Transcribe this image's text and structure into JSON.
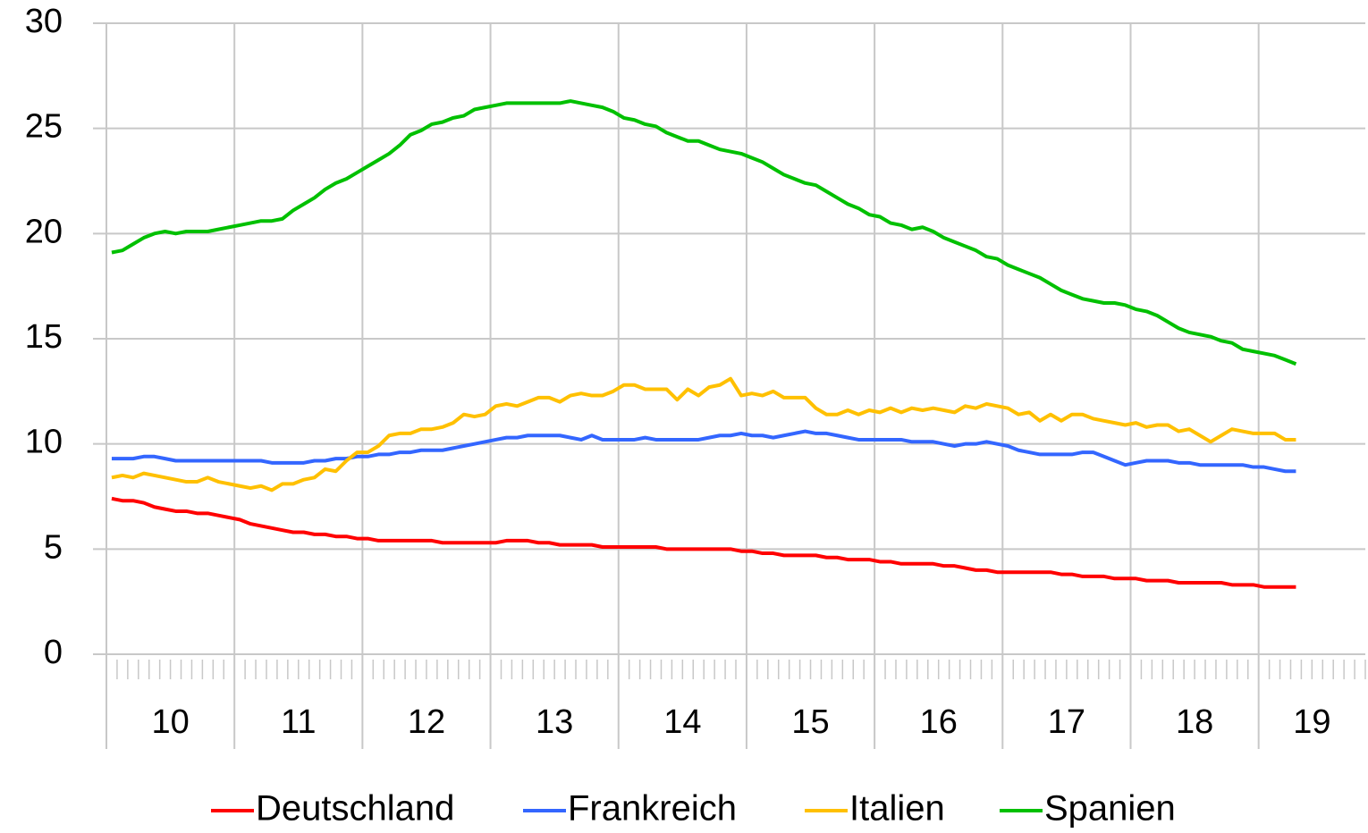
{
  "chart_data": {
    "type": "line",
    "categories": [
      null,
      null,
      null,
      null,
      null,
      null,
      null,
      null,
      null,
      null,
      null,
      null,
      null,
      null,
      null,
      null,
      null,
      null,
      null,
      null,
      null,
      null,
      null,
      null,
      null,
      null,
      null,
      null,
      null,
      null,
      null,
      null,
      null,
      null,
      null,
      null,
      null,
      null,
      null,
      null,
      null,
      null,
      null,
      null,
      null,
      null,
      null,
      null,
      null,
      null,
      null,
      null,
      null,
      null,
      null,
      null,
      null,
      null,
      null,
      null,
      null,
      null,
      null,
      null,
      null,
      null,
      null,
      null,
      null,
      null,
      null,
      null,
      null,
      null,
      null,
      null,
      null,
      null,
      null,
      null,
      null,
      null,
      null,
      null,
      null,
      null,
      null,
      null,
      null,
      null,
      null,
      null,
      null,
      null,
      null,
      null,
      null,
      null,
      null,
      null,
      null,
      null,
      null,
      null,
      null,
      null,
      null,
      null,
      null,
      null,
      null,
      null,
      null,
      null,
      null,
      null,
      null,
      null
    ],
    "x_groups": [
      {
        "label": "10",
        "size": 12
      },
      {
        "label": "11",
        "size": 12
      },
      {
        "label": "12",
        "size": 12
      },
      {
        "label": "13",
        "size": 12
      },
      {
        "label": "14",
        "size": 12
      },
      {
        "label": "15",
        "size": 12
      },
      {
        "label": "16",
        "size": 12
      },
      {
        "label": "17",
        "size": 12
      },
      {
        "label": "18",
        "size": 12
      },
      {
        "label": "19",
        "size": 10
      }
    ],
    "series": [
      {
        "name": "Deutschland",
        "color": "#ff0000",
        "values": [
          7.4,
          7.3,
          7.3,
          7.2,
          7.0,
          6.9,
          6.8,
          6.8,
          6.7,
          6.7,
          6.6,
          6.5,
          6.4,
          6.2,
          6.1,
          6.0,
          5.9,
          5.8,
          5.8,
          5.7,
          5.7,
          5.6,
          5.6,
          5.5,
          5.5,
          5.4,
          5.4,
          5.4,
          5.4,
          5.4,
          5.4,
          5.3,
          5.3,
          5.3,
          5.3,
          5.3,
          5.3,
          5.4,
          5.4,
          5.4,
          5.3,
          5.3,
          5.2,
          5.2,
          5.2,
          5.2,
          5.1,
          5.1,
          5.1,
          5.1,
          5.1,
          5.1,
          5.0,
          5.0,
          5.0,
          5.0,
          5.0,
          5.0,
          5.0,
          4.9,
          4.9,
          4.8,
          4.8,
          4.7,
          4.7,
          4.7,
          4.7,
          4.6,
          4.6,
          4.5,
          4.5,
          4.5,
          4.4,
          4.4,
          4.3,
          4.3,
          4.3,
          4.3,
          4.2,
          4.2,
          4.1,
          4.0,
          4.0,
          3.9,
          3.9,
          3.9,
          3.9,
          3.9,
          3.9,
          3.8,
          3.8,
          3.7,
          3.7,
          3.7,
          3.6,
          3.6,
          3.6,
          3.5,
          3.5,
          3.5,
          3.4,
          3.4,
          3.4,
          3.4,
          3.4,
          3.3,
          3.3,
          3.3,
          3.2,
          3.2,
          3.2,
          3.2,
          null,
          null,
          null,
          null,
          null,
          null
        ]
      },
      {
        "name": "Frankreich",
        "color": "#3366ff",
        "values": [
          9.3,
          9.3,
          9.3,
          9.4,
          9.4,
          9.3,
          9.2,
          9.2,
          9.2,
          9.2,
          9.2,
          9.2,
          9.2,
          9.2,
          9.2,
          9.1,
          9.1,
          9.1,
          9.1,
          9.2,
          9.2,
          9.3,
          9.3,
          9.4,
          9.4,
          9.5,
          9.5,
          9.6,
          9.6,
          9.7,
          9.7,
          9.7,
          9.8,
          9.9,
          10.0,
          10.1,
          10.2,
          10.3,
          10.3,
          10.4,
          10.4,
          10.4,
          10.4,
          10.3,
          10.2,
          10.4,
          10.2,
          10.2,
          10.2,
          10.2,
          10.3,
          10.2,
          10.2,
          10.2,
          10.2,
          10.2,
          10.3,
          10.4,
          10.4,
          10.5,
          10.4,
          10.4,
          10.3,
          10.4,
          10.5,
          10.6,
          10.5,
          10.5,
          10.4,
          10.3,
          10.2,
          10.2,
          10.2,
          10.2,
          10.2,
          10.1,
          10.1,
          10.1,
          10.0,
          9.9,
          10.0,
          10.0,
          10.1,
          10.0,
          9.9,
          9.7,
          9.6,
          9.5,
          9.5,
          9.5,
          9.5,
          9.6,
          9.6,
          9.4,
          9.2,
          9.0,
          9.1,
          9.2,
          9.2,
          9.2,
          9.1,
          9.1,
          9.0,
          9.0,
          9.0,
          9.0,
          9.0,
          8.9,
          8.9,
          8.8,
          8.7,
          8.7,
          null,
          null,
          null,
          null,
          null,
          null
        ]
      },
      {
        "name": "Italien",
        "color": "#ffc000",
        "values": [
          8.4,
          8.5,
          8.4,
          8.6,
          8.5,
          8.4,
          8.3,
          8.2,
          8.2,
          8.4,
          8.2,
          8.1,
          8.0,
          7.9,
          8.0,
          7.8,
          8.1,
          8.1,
          8.3,
          8.4,
          8.8,
          8.7,
          9.2,
          9.6,
          9.6,
          9.9,
          10.4,
          10.5,
          10.5,
          10.7,
          10.7,
          10.8,
          11.0,
          11.4,
          11.3,
          11.4,
          11.8,
          11.9,
          11.8,
          12.0,
          12.2,
          12.2,
          12.0,
          12.3,
          12.4,
          12.3,
          12.3,
          12.5,
          12.8,
          12.8,
          12.6,
          12.6,
          12.6,
          12.1,
          12.6,
          12.3,
          12.7,
          12.8,
          13.1,
          12.3,
          12.4,
          12.3,
          12.5,
          12.2,
          12.2,
          12.2,
          11.7,
          11.4,
          11.4,
          11.6,
          11.4,
          11.6,
          11.5,
          11.7,
          11.5,
          11.7,
          11.6,
          11.7,
          11.6,
          11.5,
          11.8,
          11.7,
          11.9,
          11.8,
          11.7,
          11.4,
          11.5,
          11.1,
          11.4,
          11.1,
          11.4,
          11.4,
          11.2,
          11.1,
          11.0,
          10.9,
          11.0,
          10.8,
          10.9,
          10.9,
          10.6,
          10.7,
          10.4,
          10.1,
          10.4,
          10.7,
          10.6,
          10.5,
          10.5,
          10.5,
          10.2,
          10.2,
          null,
          null,
          null,
          null,
          null,
          null
        ]
      },
      {
        "name": "Spanien",
        "color": "#00c000",
        "values": [
          19.1,
          19.2,
          19.5,
          19.8,
          20.0,
          20.1,
          20.0,
          20.1,
          20.1,
          20.1,
          20.2,
          20.3,
          20.4,
          20.5,
          20.6,
          20.6,
          20.7,
          21.1,
          21.4,
          21.7,
          22.1,
          22.4,
          22.6,
          22.9,
          23.2,
          23.5,
          23.8,
          24.2,
          24.7,
          24.9,
          25.2,
          25.3,
          25.5,
          25.6,
          25.9,
          26.0,
          26.1,
          26.2,
          26.2,
          26.2,
          26.2,
          26.2,
          26.2,
          26.3,
          26.2,
          26.1,
          26.0,
          25.8,
          25.5,
          25.4,
          25.2,
          25.1,
          24.8,
          24.6,
          24.4,
          24.4,
          24.2,
          24.0,
          23.9,
          23.8,
          23.6,
          23.4,
          23.1,
          22.8,
          22.6,
          22.4,
          22.3,
          22.0,
          21.7,
          21.4,
          21.2,
          20.9,
          20.8,
          20.5,
          20.4,
          20.2,
          20.3,
          20.1,
          19.8,
          19.6,
          19.4,
          19.2,
          18.9,
          18.8,
          18.5,
          18.3,
          18.1,
          17.9,
          17.6,
          17.3,
          17.1,
          16.9,
          16.8,
          16.7,
          16.7,
          16.6,
          16.4,
          16.3,
          16.1,
          15.8,
          15.5,
          15.3,
          15.2,
          15.1,
          14.9,
          14.8,
          14.5,
          14.4,
          14.3,
          14.2,
          14.0,
          13.8,
          null,
          null,
          null,
          null,
          null,
          null
        ]
      }
    ],
    "ylim": [
      0,
      30
    ],
    "yticks": [
      0,
      5,
      10,
      15,
      20,
      25,
      30
    ],
    "grid": true,
    "legend": "bottom"
  }
}
